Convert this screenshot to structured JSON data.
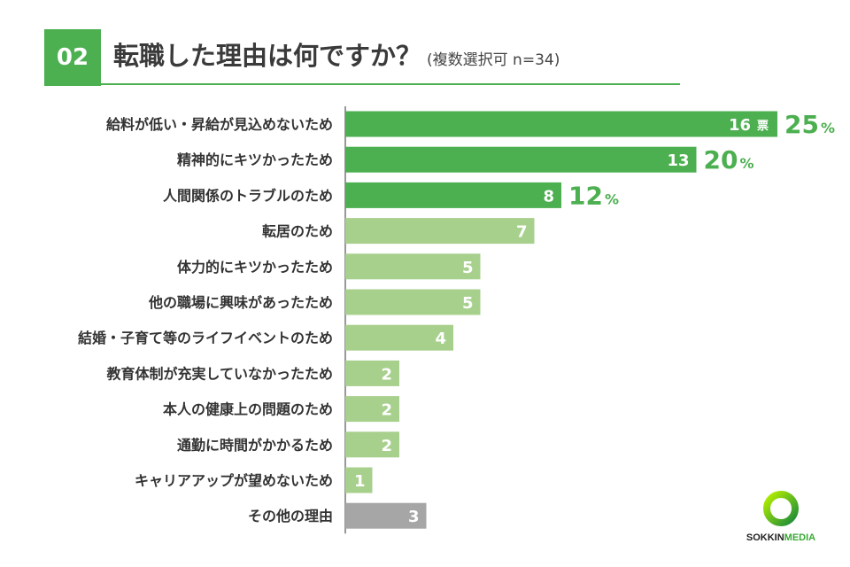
{
  "header": {
    "number": "02",
    "title": "転職した理由は何ですか？",
    "subtitle": "(複数選択可 n=34)"
  },
  "chart_data": {
    "type": "bar",
    "orientation": "horizontal",
    "title": "転職した理由は何ですか？",
    "subtitle": "(複数選択可 n=34)",
    "xlabel": "",
    "ylabel": "",
    "xlim": [
      0,
      16
    ],
    "grid": false,
    "legend": "none",
    "unit_label": "票",
    "categories": [
      "給料が低い・昇給が見込めないため",
      "精神的にキツかったため",
      "人間関係のトラブルのため",
      "転居のため",
      "体力的にキツかったため",
      "他の職場に興味があったため",
      "結婚・子育て等のライフイベントのため",
      "教育体制が充実していなかったため",
      "本人の健康上の問題のため",
      "通勤に時間がかかるため",
      "キャリアアップが望めないため",
      "その他の理由"
    ],
    "values": [
      16,
      13,
      8,
      7,
      5,
      5,
      4,
      2,
      2,
      2,
      1,
      3
    ],
    "percent_labels": [
      {
        "index": 0,
        "number": "25",
        "sign": "%"
      },
      {
        "index": 1,
        "number": "20",
        "sign": "%"
      },
      {
        "index": 2,
        "number": "12",
        "sign": "%"
      }
    ],
    "colors": {
      "top": "#4caf50",
      "other": "#a8d08d",
      "misc": "#a6a6a6",
      "percent_text": "#4caf50",
      "value_text": "#ffffff"
    }
  },
  "logo": {
    "text_a": "SOKKIN",
    "text_b": "MEDIA",
    "ring_icon": "green-ring-icon"
  }
}
